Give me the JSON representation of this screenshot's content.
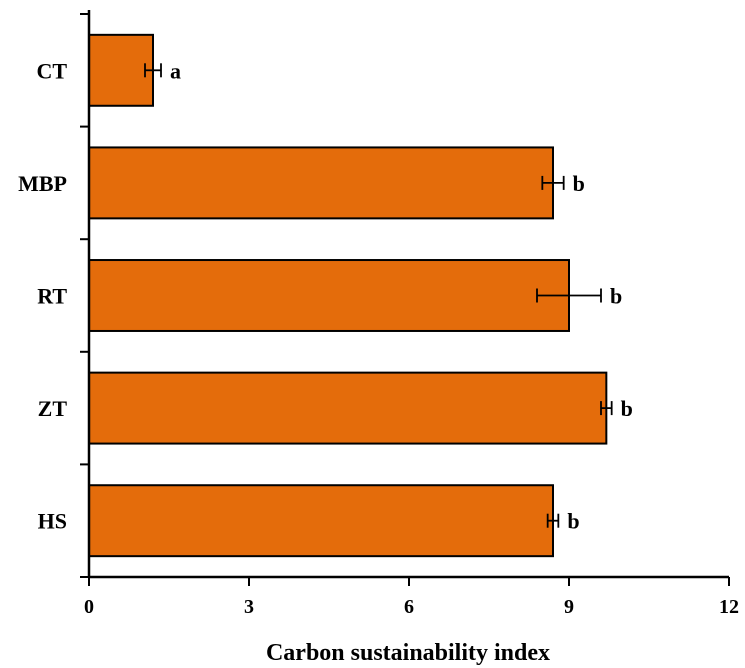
{
  "chart_data": {
    "type": "bar",
    "orientation": "horizontal",
    "categories": [
      "CT",
      "MBP",
      "RT",
      "ZT",
      "HS"
    ],
    "values": [
      1.2,
      8.7,
      9.0,
      9.7,
      8.7
    ],
    "errors": [
      0.15,
      0.2,
      0.6,
      0.1,
      0.1
    ],
    "significance": [
      "a",
      "b",
      "b",
      "b",
      "b"
    ],
    "title": "",
    "xlabel": "Carbon sustainability index",
    "ylabel": "",
    "xlim": [
      0,
      12
    ],
    "xticks": [
      "0",
      "3",
      "6",
      "9",
      "12"
    ],
    "grid": false,
    "bar_color": "#e46c0b",
    "bar_edge_color": "#000000"
  }
}
